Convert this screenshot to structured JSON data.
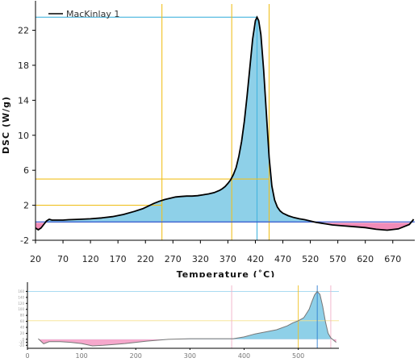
{
  "chart_data": [
    {
      "type": "area",
      "legend": {
        "label": "MacKinlay 1",
        "position": "top-left"
      },
      "xlabel": "Temperature (˚C)",
      "ylabel": "DSC (W/g)",
      "xlim": [
        20,
        710
      ],
      "ylim": [
        -2,
        25
      ],
      "xticks": [
        20,
        70,
        120,
        170,
        220,
        270,
        320,
        370,
        420,
        470,
        520,
        570,
        620,
        670
      ],
      "yticks": [
        -2,
        2,
        6,
        10,
        14,
        18,
        22
      ],
      "series": [
        {
          "name": "MacKinlay 1",
          "x": [
            20,
            25,
            30,
            35,
            40,
            45,
            50,
            55,
            60,
            70,
            80,
            100,
            120,
            140,
            160,
            180,
            200,
            215,
            225,
            235,
            245,
            255,
            265,
            275,
            285,
            295,
            305,
            315,
            325,
            335,
            345,
            355,
            360,
            365,
            370,
            375,
            380,
            385,
            390,
            395,
            400,
            405,
            410,
            415,
            420,
            423,
            426,
            430,
            435,
            440,
            445,
            450,
            455,
            460,
            465,
            470,
            480,
            490,
            500,
            510,
            520,
            530,
            540,
            550,
            560,
            580,
            600,
            620,
            640,
            660,
            680,
            700,
            708
          ],
          "y": [
            -0.6,
            -0.8,
            -0.6,
            -0.2,
            0.2,
            0.4,
            0.3,
            0.3,
            0.3,
            0.3,
            0.35,
            0.4,
            0.45,
            0.55,
            0.7,
            0.95,
            1.3,
            1.6,
            1.9,
            2.2,
            2.45,
            2.65,
            2.8,
            2.95,
            3.0,
            3.05,
            3.05,
            3.1,
            3.2,
            3.3,
            3.45,
            3.7,
            3.9,
            4.15,
            4.5,
            4.9,
            5.5,
            6.3,
            7.6,
            9.3,
            11.6,
            14.5,
            17.8,
            21.0,
            23.1,
            23.5,
            23.1,
            21.5,
            17.5,
            12.5,
            7.5,
            4.2,
            2.6,
            1.8,
            1.35,
            1.1,
            0.8,
            0.6,
            0.45,
            0.35,
            0.2,
            0.05,
            -0.05,
            -0.15,
            -0.25,
            -0.35,
            -0.45,
            -0.55,
            -0.75,
            -0.85,
            -0.7,
            -0.2,
            0.4
          ]
        }
      ],
      "annotations": [
        {
          "type": "hline",
          "y": 23.5,
          "x_to": 423,
          "color": "#46b4de"
        },
        {
          "type": "vline",
          "x": 423,
          "y_to": 23.5,
          "color": "#46b4de"
        },
        {
          "type": "hline",
          "y": 5,
          "x_to": 445,
          "color": "#f0c020"
        },
        {
          "type": "hline",
          "y": 2,
          "x_to": 250,
          "color": "#f0c020"
        },
        {
          "type": "vline",
          "x": 250,
          "color": "#f0c020"
        },
        {
          "type": "vline",
          "x": 377,
          "color": "#f0c020"
        },
        {
          "type": "vline",
          "x": 445,
          "color": "#f0c020"
        },
        {
          "type": "baseline",
          "y": 0.1,
          "color": "#3050d0"
        }
      ],
      "colors": {
        "positive_fill": "#8ed0e8",
        "negative_fill": "#f28cb8",
        "line": "#000000",
        "highlight": "#46b4de",
        "marker": "#f0c020"
      }
    },
    {
      "type": "area",
      "xlim": [
        0,
        575
      ],
      "xticks": [
        0,
        100,
        200,
        300,
        400,
        500
      ],
      "ylim": [
        -30,
        180
      ],
      "yticks": [
        -20,
        -10,
        0,
        20,
        40,
        60,
        80,
        100,
        120,
        140,
        160
      ],
      "series": [
        {
          "x": [
            20,
            30,
            40,
            60,
            80,
            100,
            120,
            140,
            160,
            180,
            200,
            220,
            240,
            260,
            280,
            300,
            320,
            340,
            360,
            380,
            400,
            420,
            440,
            460,
            480,
            490,
            500,
            510,
            520,
            525,
            530,
            535,
            540,
            545,
            550,
            555,
            560,
            570
          ],
          "y": [
            2,
            -15,
            -8,
            -8,
            -10,
            -14,
            -22,
            -20,
            -17,
            -14,
            -10,
            -6,
            -3,
            0,
            1,
            2,
            2,
            2,
            2,
            2,
            8,
            18,
            25,
            32,
            45,
            55,
            62,
            72,
            100,
            125,
            148,
            160,
            150,
            110,
            60,
            20,
            5,
            -10
          ]
        }
      ],
      "annotations": [
        {
          "type": "hline",
          "y": 160,
          "color": "#9ed6f0"
        },
        {
          "type": "hline",
          "y": 62,
          "color": "#f6e28c"
        },
        {
          "type": "vline",
          "x": 377,
          "color": "#f0b0c8"
        },
        {
          "type": "vline",
          "x": 500,
          "color": "#f0c020"
        },
        {
          "type": "vline",
          "x": 535,
          "color": "#2f7fd0"
        },
        {
          "type": "vline",
          "x": 560,
          "color": "#f0b0c8"
        }
      ],
      "colors": {
        "positive_fill": "#8ed0e8",
        "negative_fill": "#f6a8cc",
        "line": "#777777"
      }
    }
  ]
}
